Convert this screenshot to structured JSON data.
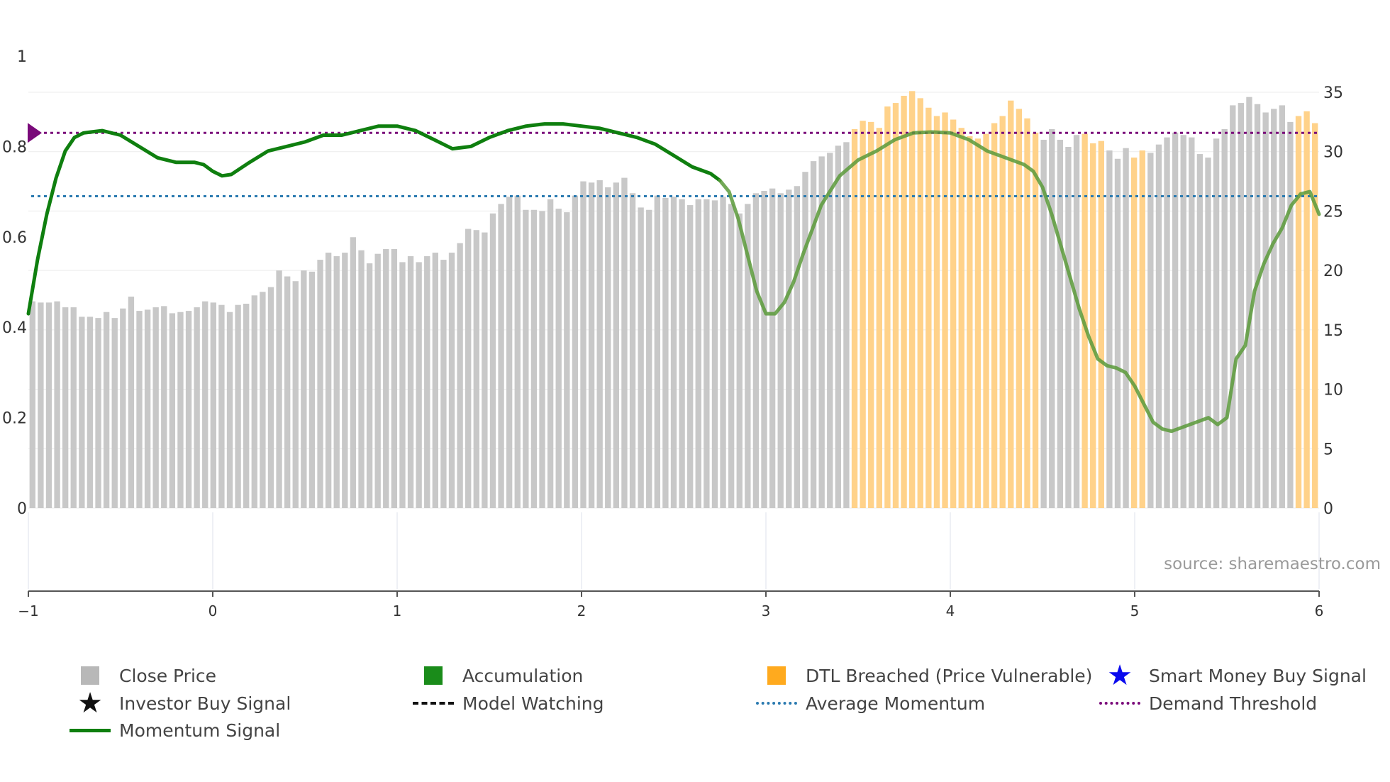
{
  "chart_data": {
    "type": "bar+line",
    "source_note": "source: sharemaestro.com",
    "left_axis": {
      "ticks": [
        "0",
        "0.2",
        "0.4",
        "0.6",
        "0.8",
        "1"
      ],
      "range": [
        0,
        1
      ]
    },
    "right_axis": {
      "ticks": [
        "0",
        "5",
        "10",
        "15",
        "20",
        "25",
        "30",
        "35"
      ],
      "range": [
        0,
        35
      ]
    },
    "x_axis": {
      "ticks": [
        "−1",
        "0",
        "1",
        "2",
        "3",
        "4",
        "5",
        "6"
      ],
      "range": [
        -1,
        6
      ]
    },
    "close_price": [
      17.4,
      17.3,
      17.3,
      17.4,
      16.9,
      16.9,
      16.1,
      16.1,
      16.0,
      16.5,
      16.0,
      16.8,
      17.8,
      16.6,
      16.7,
      16.9,
      17.0,
      16.4,
      16.5,
      16.6,
      16.9,
      17.4,
      17.3,
      17.1,
      16.5,
      17.1,
      17.2,
      17.9,
      18.2,
      18.6,
      20.0,
      19.5,
      19.1,
      20.0,
      19.9,
      20.9,
      21.5,
      21.2,
      21.5,
      22.8,
      21.7,
      20.6,
      21.4,
      21.8,
      21.8,
      20.7,
      21.2,
      20.7,
      21.2,
      21.5,
      20.9,
      21.5,
      22.3,
      23.5,
      23.4,
      23.2,
      24.8,
      25.6,
      26.2,
      26.3,
      25.1,
      25.1,
      25.0,
      26.0,
      25.2,
      24.9,
      26.3,
      27.5,
      27.4,
      27.6,
      27.0,
      27.4,
      27.8,
      26.5,
      25.3,
      25.1,
      26.3,
      26.1,
      26.2,
      26.0,
      25.5,
      26.0,
      26.0,
      25.9,
      26.2,
      25.6,
      24.8,
      25.6,
      26.5,
      26.7,
      26.9,
      26.5,
      26.8,
      27.1,
      28.3,
      29.2,
      29.6,
      29.9,
      30.5,
      30.8,
      31.9,
      32.6,
      32.5,
      32.0,
      33.8,
      34.1,
      34.7,
      35.1,
      34.5,
      33.7,
      33.0,
      33.3,
      32.7,
      32.0,
      31.3,
      31.1,
      31.5,
      32.4,
      33.0,
      34.3,
      33.6,
      32.8,
      31.6,
      31.0,
      31.9,
      31.0,
      30.4,
      31.4,
      31.5,
      30.7,
      30.9,
      30.1,
      29.4,
      30.3,
      29.5,
      30.1,
      29.9,
      30.6,
      31.2,
      31.6,
      31.4,
      31.2,
      29.8,
      29.5,
      31.1,
      31.9,
      33.9,
      34.1,
      34.6,
      34.0,
      33.3,
      33.6,
      33.9,
      32.5,
      33.0,
      33.4,
      32.4
    ],
    "dtl_breached_start_index": 100,
    "dtl_breached_excluded_indices": [
      123,
      124,
      125,
      126,
      127,
      131,
      132,
      133,
      136,
      137,
      138,
      139,
      140,
      141,
      142,
      143,
      144,
      145,
      146,
      147,
      148,
      149,
      150,
      151,
      152,
      153
    ],
    "momentum_signal": [
      [
        -1.0,
        0.43
      ],
      [
        -0.95,
        0.55
      ],
      [
        -0.9,
        0.65
      ],
      [
        -0.85,
        0.73
      ],
      [
        -0.8,
        0.79
      ],
      [
        -0.75,
        0.82
      ],
      [
        -0.7,
        0.83
      ],
      [
        -0.6,
        0.835
      ],
      [
        -0.5,
        0.825
      ],
      [
        -0.4,
        0.8
      ],
      [
        -0.3,
        0.775
      ],
      [
        -0.2,
        0.765
      ],
      [
        -0.1,
        0.765
      ],
      [
        -0.05,
        0.76
      ],
      [
        0.0,
        0.745
      ],
      [
        0.05,
        0.735
      ],
      [
        0.1,
        0.738
      ],
      [
        0.2,
        0.765
      ],
      [
        0.3,
        0.79
      ],
      [
        0.4,
        0.8
      ],
      [
        0.5,
        0.81
      ],
      [
        0.6,
        0.825
      ],
      [
        0.7,
        0.825
      ],
      [
        0.8,
        0.835
      ],
      [
        0.9,
        0.845
      ],
      [
        1.0,
        0.845
      ],
      [
        1.1,
        0.835
      ],
      [
        1.2,
        0.815
      ],
      [
        1.3,
        0.795
      ],
      [
        1.4,
        0.8
      ],
      [
        1.5,
        0.82
      ],
      [
        1.6,
        0.835
      ],
      [
        1.7,
        0.845
      ],
      [
        1.8,
        0.85
      ],
      [
        1.9,
        0.85
      ],
      [
        2.0,
        0.845
      ],
      [
        2.1,
        0.84
      ],
      [
        2.2,
        0.83
      ],
      [
        2.3,
        0.82
      ],
      [
        2.4,
        0.805
      ],
      [
        2.5,
        0.78
      ],
      [
        2.6,
        0.755
      ],
      [
        2.7,
        0.74
      ],
      [
        2.75,
        0.725
      ],
      [
        2.8,
        0.7
      ],
      [
        2.85,
        0.64
      ],
      [
        2.9,
        0.56
      ],
      [
        2.95,
        0.48
      ],
      [
        3.0,
        0.43
      ],
      [
        3.05,
        0.43
      ],
      [
        3.1,
        0.455
      ],
      [
        3.15,
        0.5
      ],
      [
        3.2,
        0.56
      ],
      [
        3.3,
        0.67
      ],
      [
        3.4,
        0.735
      ],
      [
        3.5,
        0.77
      ],
      [
        3.6,
        0.79
      ],
      [
        3.7,
        0.815
      ],
      [
        3.8,
        0.83
      ],
      [
        3.9,
        0.832
      ],
      [
        4.0,
        0.83
      ],
      [
        4.1,
        0.815
      ],
      [
        4.2,
        0.79
      ],
      [
        4.3,
        0.775
      ],
      [
        4.4,
        0.76
      ],
      [
        4.45,
        0.745
      ],
      [
        4.5,
        0.71
      ],
      [
        4.55,
        0.65
      ],
      [
        4.6,
        0.58
      ],
      [
        4.65,
        0.51
      ],
      [
        4.7,
        0.44
      ],
      [
        4.75,
        0.38
      ],
      [
        4.8,
        0.33
      ],
      [
        4.85,
        0.315
      ],
      [
        4.9,
        0.31
      ],
      [
        4.95,
        0.3
      ],
      [
        5.0,
        0.27
      ],
      [
        5.05,
        0.23
      ],
      [
        5.1,
        0.19
      ],
      [
        5.15,
        0.175
      ],
      [
        5.2,
        0.17
      ],
      [
        5.3,
        0.185
      ],
      [
        5.4,
        0.2
      ],
      [
        5.45,
        0.185
      ],
      [
        5.5,
        0.2
      ],
      [
        5.55,
        0.33
      ],
      [
        5.6,
        0.36
      ],
      [
        5.65,
        0.48
      ],
      [
        5.7,
        0.54
      ],
      [
        5.75,
        0.585
      ],
      [
        5.8,
        0.62
      ],
      [
        5.85,
        0.67
      ],
      [
        5.9,
        0.695
      ],
      [
        5.95,
        0.7
      ],
      [
        6.0,
        0.65
      ]
    ],
    "average_momentum": 0.69,
    "demand_threshold": 0.83,
    "colors": {
      "close_price": "#c8c8c8",
      "dtl_breached": "#ffd28a",
      "momentum": "#0f7f0f",
      "momentum_faded": "#5a9a3a",
      "average_momentum": "#2a7ab0",
      "demand_threshold": "#7a0a7a",
      "accumulation": "#1a8c1a",
      "dtl_legend": "#ffaa1e",
      "smart_money": "#0a0aee"
    }
  },
  "legend": {
    "close_price": "Close Price",
    "investor_buy": "Investor Buy Signal",
    "momentum": "Momentum Signal",
    "accumulation": "Accumulation",
    "model_watching": "Model Watching",
    "dtl_breached": "DTL Breached (Price Vulnerable)",
    "average_momentum": "Average Momentum",
    "smart_money": "Smart Money Buy Signal",
    "demand_threshold": "Demand Threshold"
  }
}
